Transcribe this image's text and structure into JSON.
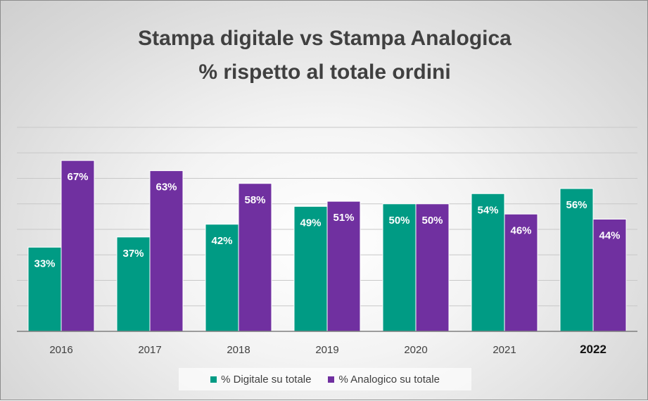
{
  "chart_data": {
    "type": "bar",
    "title": "Stampa digitale vs Stampa Analogica",
    "subtitle": "% rispetto al totale ordini",
    "categories": [
      "2016",
      "2017",
      "2018",
      "2019",
      "2020",
      "2021",
      "2022"
    ],
    "highlight_category": "2022",
    "series": [
      {
        "name": "% Digitale su totale",
        "color": "#009b84",
        "values": [
          33,
          37,
          42,
          49,
          50,
          54,
          56
        ],
        "labels": [
          "33%",
          "37%",
          "42%",
          "49%",
          "50%",
          "54%",
          "56%"
        ]
      },
      {
        "name": "% Analogico su totale",
        "color": "#7030a0",
        "values": [
          67,
          63,
          58,
          51,
          50,
          46,
          44
        ],
        "labels": [
          "67%",
          "63%",
          "58%",
          "51%",
          "50%",
          "46%",
          "44%"
        ]
      }
    ],
    "ylim": [
      0,
      80
    ],
    "grid": true,
    "legend_position": "bottom"
  }
}
